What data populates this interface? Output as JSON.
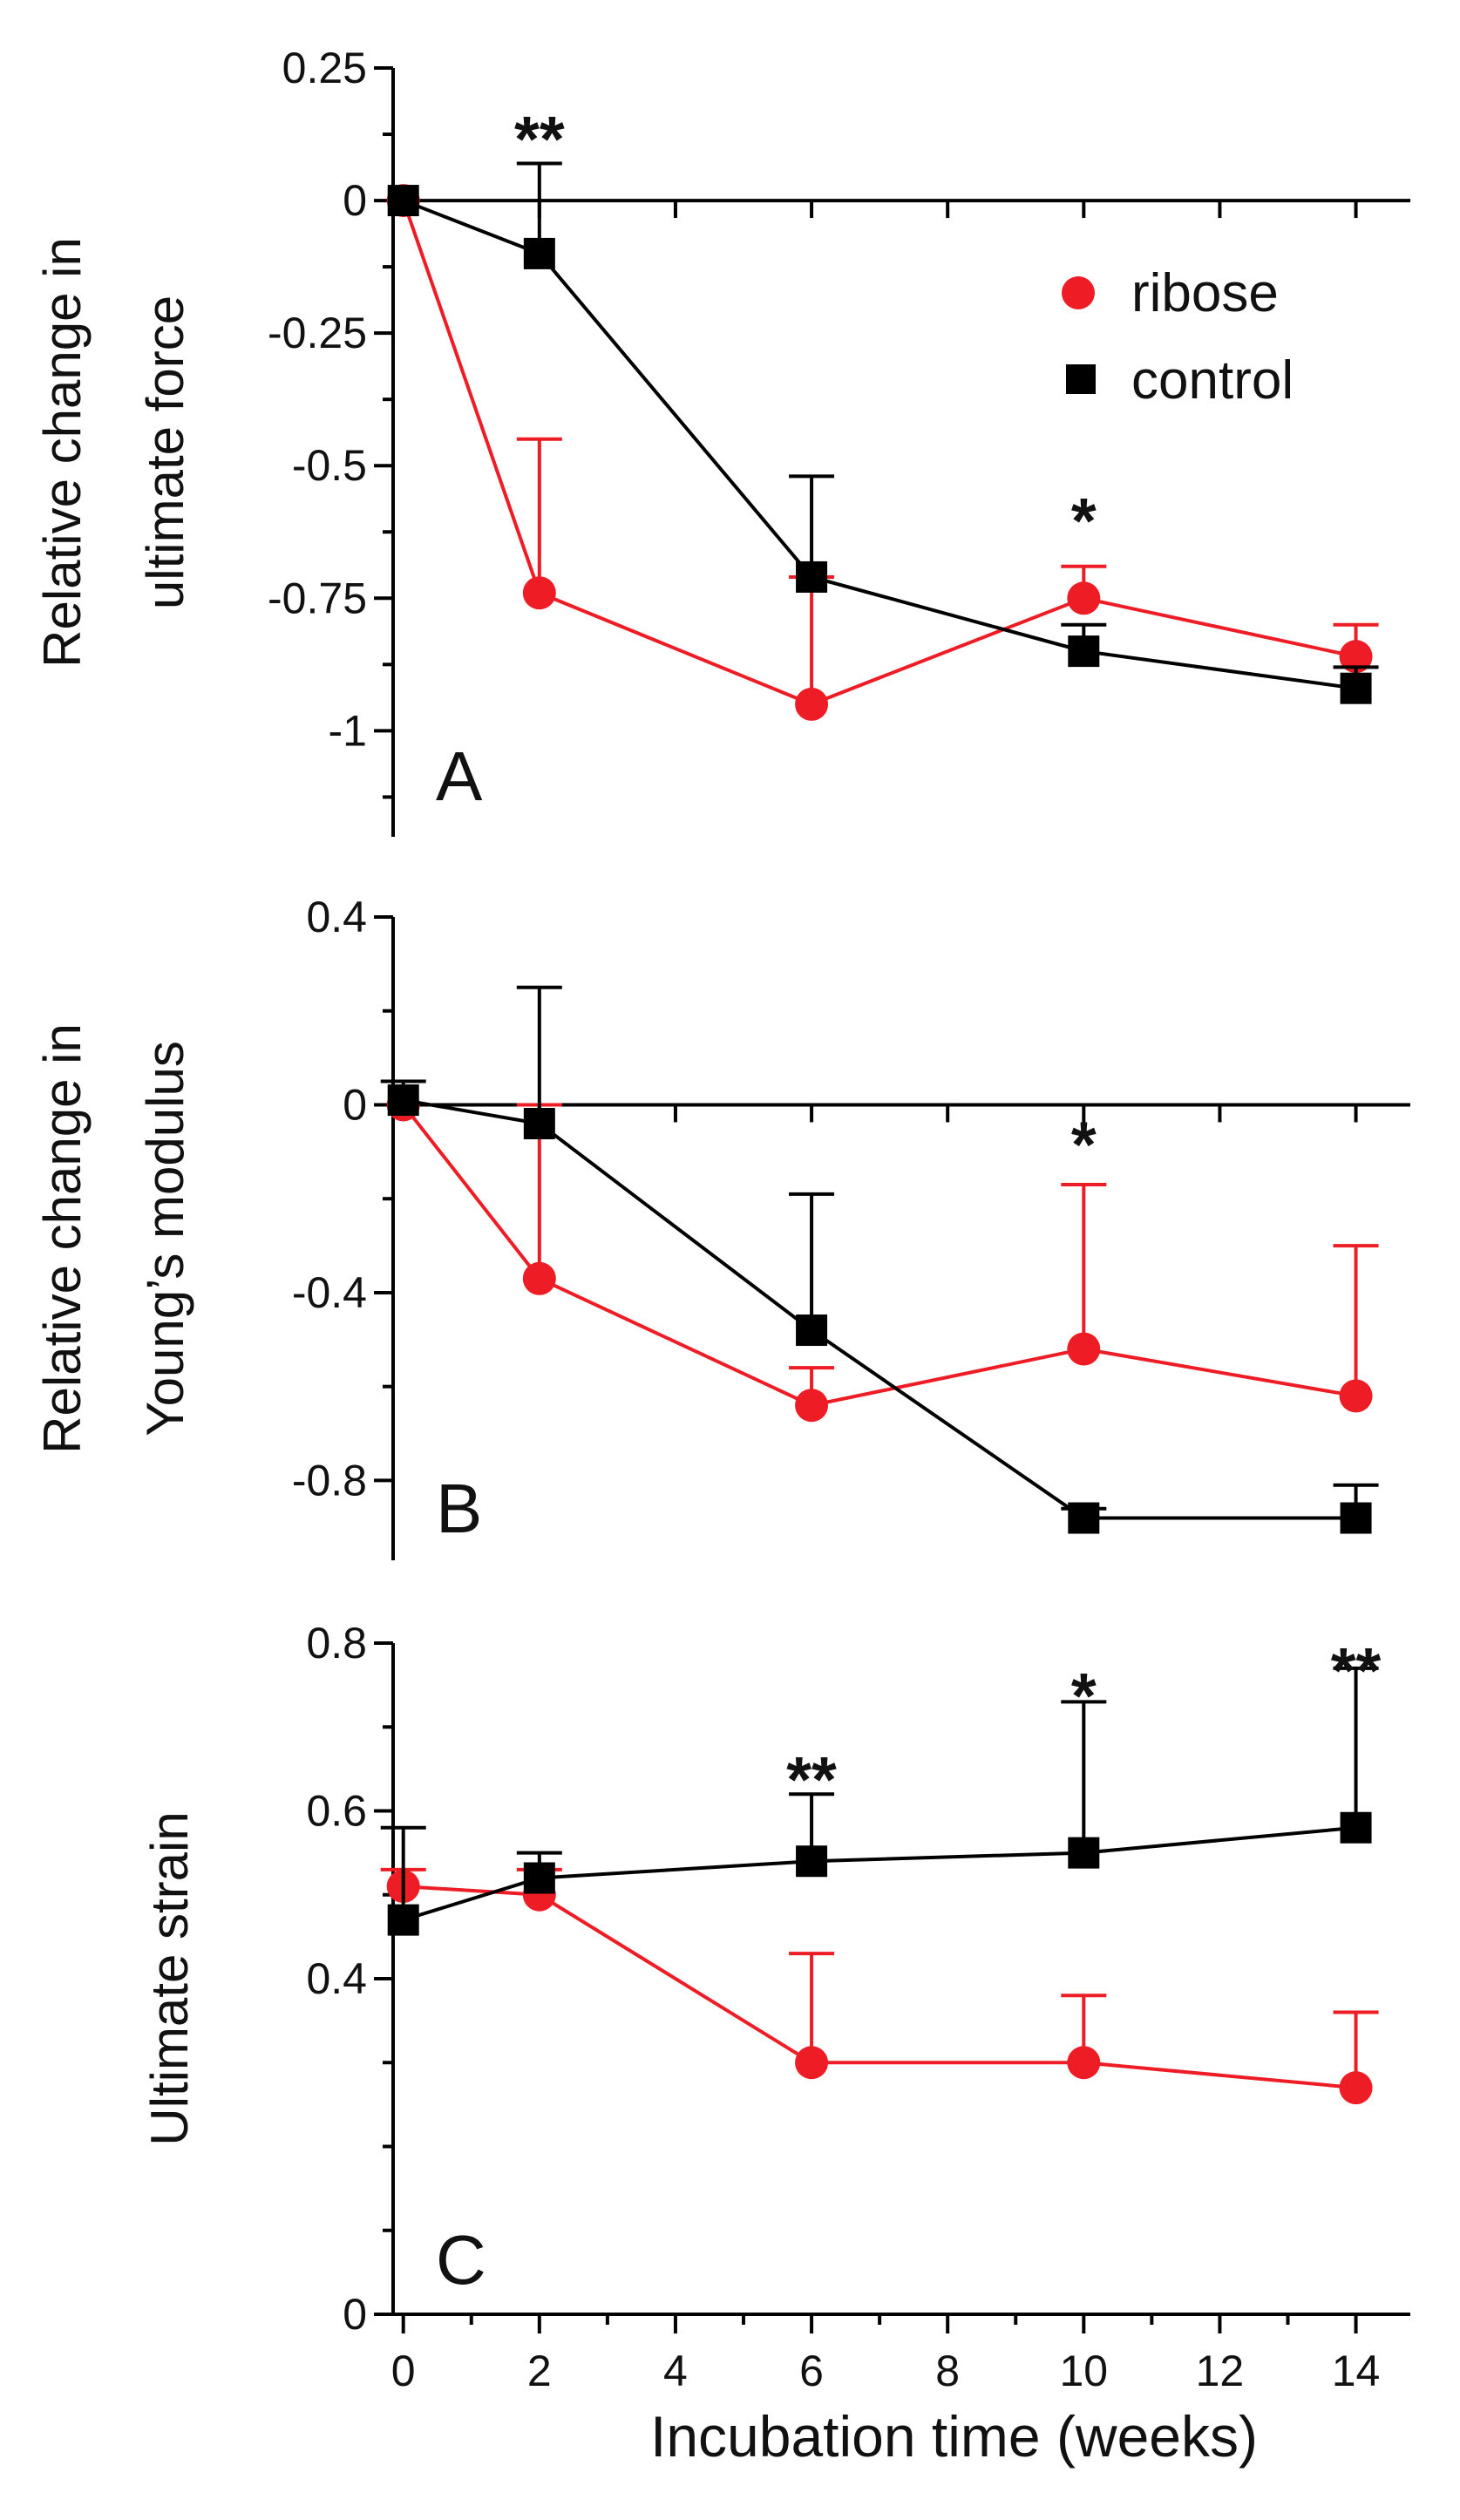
{
  "colors": {
    "ribose": "#ee1c25",
    "control": "#000000",
    "axis": "#000000"
  },
  "xaxis": {
    "label": "Incubation time (weeks)",
    "ticks": [
      0,
      2,
      4,
      6,
      8,
      10,
      12,
      14
    ],
    "range": [
      -0.15,
      14.8
    ]
  },
  "legend": {
    "ribose": "ribose",
    "control": "control",
    "position": "top-right of panel A"
  },
  "chart_data": [
    {
      "type": "line",
      "panel": "A",
      "ylabel_line1": "Relative change in",
      "ylabel_line2": "ultimate force",
      "ylim": [
        -1.2,
        0.25
      ],
      "yticks": [
        0.25,
        0,
        -0.25,
        -0.5,
        -0.75,
        -1
      ],
      "ytick_labels": [
        "0.25",
        "0",
        "-0.25",
        "-0.5",
        "-0.75",
        "-1"
      ],
      "minor_yticks": [
        0.125,
        -0.125,
        -0.375,
        -0.625,
        -0.875,
        -1.125
      ],
      "x": [
        0,
        2,
        6,
        10,
        14
      ],
      "series": [
        {
          "name": "ribose",
          "values": [
            0,
            -0.74,
            -0.95,
            -0.75,
            -0.86
          ],
          "err_plus": [
            0,
            0.29,
            0.24,
            0.06,
            0.06
          ]
        },
        {
          "name": "control",
          "values": [
            0,
            -0.1,
            -0.71,
            -0.85,
            -0.92
          ],
          "err_plus": [
            0,
            0.17,
            0.19,
            0.05,
            0.04
          ]
        }
      ],
      "annotations": [
        {
          "x": 2,
          "y": 0.12,
          "text": "**"
        },
        {
          "x": 10,
          "y": -0.6,
          "text": "*"
        }
      ]
    },
    {
      "type": "line",
      "panel": "B",
      "ylabel_line1": "Relative change in",
      "ylabel_line2": "Young’s modulus",
      "ylim": [
        -0.97,
        0.4
      ],
      "yticks": [
        0.4,
        0,
        -0.4,
        -0.8
      ],
      "ytick_labels": [
        "0.4",
        "0",
        "-0.4",
        "-0.8"
      ],
      "minor_yticks": [
        0.2,
        -0.2,
        -0.6
      ],
      "x": [
        0,
        2,
        6,
        10,
        14
      ],
      "series": [
        {
          "name": "ribose",
          "values": [
            0,
            -0.37,
            -0.64,
            -0.52,
            -0.62
          ],
          "err_plus": [
            0,
            0.37,
            0.08,
            0.35,
            0.32
          ]
        },
        {
          "name": "control",
          "values": [
            0.01,
            -0.04,
            -0.48,
            -0.88,
            -0.88
          ],
          "err_plus": [
            0.04,
            0.29,
            0.29,
            0.02,
            0.07
          ]
        }
      ],
      "annotations": [
        {
          "x": 10,
          "y": -0.08,
          "text": "*"
        }
      ]
    },
    {
      "type": "line",
      "panel": "C",
      "ylabel_line1": "Ultimate strain",
      "ylabel_line2": "",
      "ylim": [
        0,
        0.8
      ],
      "yticks": [
        0.8,
        0.6,
        0.4,
        0
      ],
      "ytick_labels": [
        "0.8",
        "0.6",
        "0.4",
        "0"
      ],
      "minor_yticks": [
        0.7,
        0.5,
        0.3,
        0.2,
        0.1
      ],
      "x": [
        0,
        2,
        6,
        10,
        14
      ],
      "series": [
        {
          "name": "ribose",
          "values": [
            0.51,
            0.5,
            0.3,
            0.3,
            0.27
          ],
          "err_plus": [
            0.02,
            0.03,
            0.13,
            0.08,
            0.09
          ]
        },
        {
          "name": "control",
          "values": [
            0.47,
            0.52,
            0.54,
            0.55,
            0.58
          ],
          "err_plus": [
            0.11,
            0.03,
            0.08,
            0.18,
            0.19
          ]
        }
      ],
      "annotations": [
        {
          "x": 6,
          "y": 0.64,
          "text": "**"
        },
        {
          "x": 10,
          "y": 0.74,
          "text": "*"
        },
        {
          "x": 14,
          "y": 0.77,
          "text": "**"
        }
      ]
    }
  ]
}
